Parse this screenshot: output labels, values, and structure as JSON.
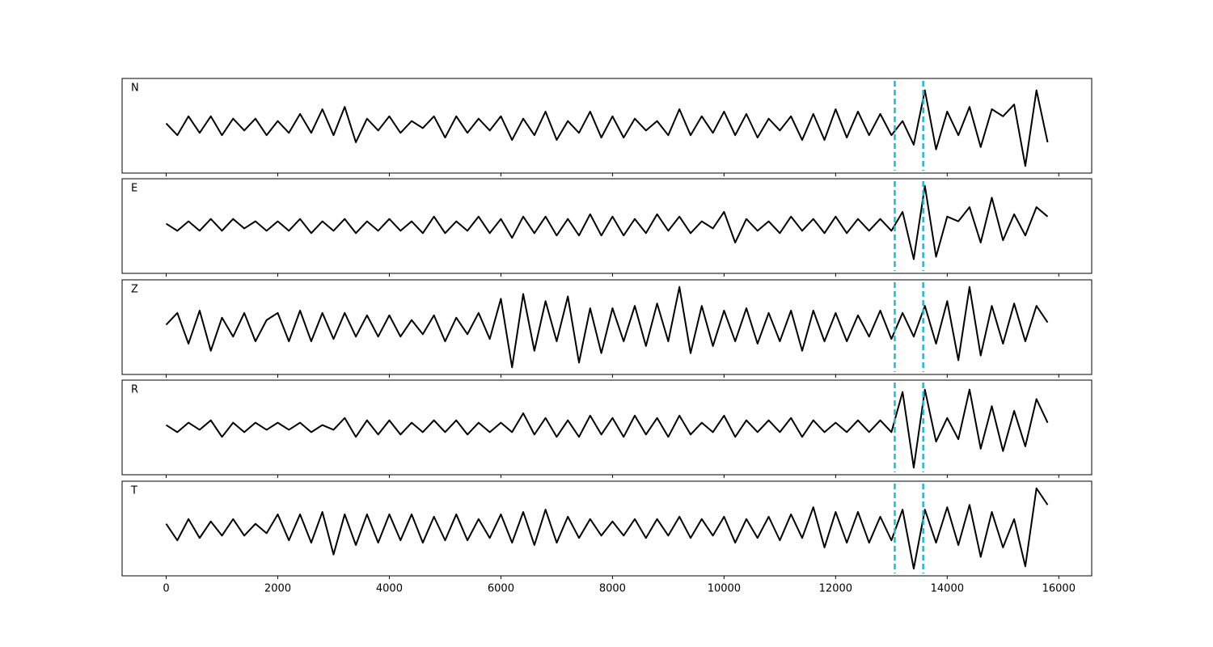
{
  "chart_data": {
    "type": "line",
    "x": [
      0,
      200,
      400,
      600,
      800,
      1000,
      1200,
      1400,
      1600,
      1800,
      2000,
      2200,
      2400,
      2600,
      2800,
      3000,
      3200,
      3400,
      3600,
      3800,
      4000,
      4200,
      4400,
      4600,
      4800,
      5000,
      5200,
      5400,
      5600,
      5800,
      6000,
      6200,
      6400,
      6600,
      6800,
      7000,
      7200,
      7400,
      7600,
      7800,
      8000,
      8200,
      8400,
      8600,
      8800,
      9000,
      9200,
      9400,
      9600,
      9800,
      10000,
      10200,
      10400,
      10600,
      10800,
      11000,
      11200,
      11400,
      11600,
      11800,
      12000,
      12200,
      12400,
      12600,
      12800,
      13000,
      13200,
      13400,
      13600,
      13800,
      14000,
      14200,
      14400,
      14600,
      14800,
      15000,
      15200,
      15400,
      15600,
      15800
    ],
    "xlim": [
      -790,
      16590
    ],
    "xticks": [
      0,
      2000,
      4000,
      6000,
      8000,
      10000,
      12000,
      14000,
      16000
    ],
    "ylim": [
      -1,
      1
    ],
    "vlines": [
      13060,
      13570
    ],
    "vline_color": "#17becf",
    "series": [
      {
        "name": "N",
        "color": "#000000",
        "values": [
          0.05,
          -0.2,
          0.2,
          -0.15,
          0.2,
          -0.2,
          0.15,
          -0.1,
          0.15,
          -0.2,
          0.1,
          -0.15,
          0.25,
          -0.15,
          0.35,
          -0.2,
          0.4,
          -0.35,
          0.15,
          -0.1,
          0.2,
          -0.15,
          0.1,
          -0.05,
          0.2,
          -0.25,
          0.2,
          -0.15,
          0.15,
          -0.1,
          0.2,
          -0.3,
          0.15,
          -0.2,
          0.3,
          -0.3,
          0.1,
          -0.15,
          0.3,
          -0.25,
          0.2,
          -0.25,
          0.15,
          -0.1,
          0.1,
          -0.2,
          0.35,
          -0.2,
          0.2,
          -0.15,
          0.3,
          -0.2,
          0.25,
          -0.25,
          0.15,
          -0.1,
          0.2,
          -0.3,
          0.25,
          -0.3,
          0.35,
          -0.25,
          0.3,
          -0.2,
          0.25,
          -0.2,
          0.1,
          -0.4,
          0.75,
          -0.5,
          0.3,
          -0.2,
          0.4,
          -0.45,
          0.35,
          0.2,
          0.45,
          -0.85,
          0.75,
          -0.35
        ]
      },
      {
        "name": "E",
        "color": "#000000",
        "values": [
          0.05,
          -0.1,
          0.1,
          -0.1,
          0.15,
          -0.1,
          0.15,
          -0.05,
          0.1,
          -0.1,
          0.1,
          -0.1,
          0.15,
          -0.15,
          0.1,
          -0.1,
          0.15,
          -0.15,
          0.1,
          -0.1,
          0.15,
          -0.1,
          0.1,
          -0.15,
          0.2,
          -0.15,
          0.1,
          -0.1,
          0.2,
          -0.15,
          0.15,
          -0.25,
          0.2,
          -0.15,
          0.2,
          -0.2,
          0.15,
          -0.2,
          0.25,
          -0.2,
          0.2,
          -0.2,
          0.15,
          -0.15,
          0.25,
          -0.1,
          0.2,
          -0.15,
          0.1,
          -0.05,
          0.3,
          -0.35,
          0.15,
          -0.1,
          0.1,
          -0.15,
          0.2,
          -0.1,
          0.15,
          -0.15,
          0.2,
          -0.15,
          0.15,
          -0.1,
          0.15,
          -0.1,
          0.3,
          -0.7,
          0.85,
          -0.65,
          0.2,
          0.1,
          0.4,
          -0.35,
          0.6,
          -0.3,
          0.25,
          -0.2,
          0.4,
          0.2
        ]
      },
      {
        "name": "Z",
        "color": "#000000",
        "values": [
          0.05,
          0.3,
          -0.35,
          0.35,
          -0.5,
          0.2,
          -0.2,
          0.3,
          -0.3,
          0.15,
          0.3,
          -0.3,
          0.35,
          -0.3,
          0.3,
          -0.25,
          0.3,
          -0.2,
          0.25,
          -0.2,
          0.25,
          -0.2,
          0.15,
          -0.15,
          0.25,
          -0.3,
          0.2,
          -0.15,
          0.3,
          -0.25,
          0.6,
          -0.85,
          0.7,
          -0.5,
          0.55,
          -0.3,
          0.65,
          -0.75,
          0.4,
          -0.55,
          0.4,
          -0.3,
          0.45,
          -0.4,
          0.5,
          -0.3,
          0.85,
          -0.55,
          0.45,
          -0.4,
          0.35,
          -0.3,
          0.4,
          -0.35,
          0.3,
          -0.3,
          0.35,
          -0.5,
          0.35,
          -0.3,
          0.3,
          -0.3,
          0.25,
          -0.2,
          0.35,
          -0.25,
          0.3,
          -0.2,
          0.45,
          -0.35,
          0.55,
          -0.7,
          0.85,
          -0.6,
          0.45,
          -0.35,
          0.5,
          -0.3,
          0.45,
          0.1
        ]
      },
      {
        "name": "R",
        "color": "#000000",
        "values": [
          0.05,
          -0.1,
          0.1,
          -0.05,
          0.15,
          -0.2,
          0.1,
          -0.1,
          0.1,
          -0.05,
          0.1,
          -0.05,
          0.1,
          -0.1,
          0.05,
          -0.05,
          0.2,
          -0.2,
          0.15,
          -0.15,
          0.15,
          -0.15,
          0.1,
          -0.1,
          0.15,
          -0.1,
          0.15,
          -0.15,
          0.1,
          -0.1,
          0.1,
          -0.1,
          0.3,
          -0.15,
          0.2,
          -0.2,
          0.15,
          -0.2,
          0.25,
          -0.15,
          0.2,
          -0.2,
          0.25,
          -0.15,
          0.2,
          -0.2,
          0.25,
          -0.15,
          0.1,
          -0.1,
          0.25,
          -0.2,
          0.15,
          -0.1,
          0.15,
          -0.1,
          0.2,
          -0.2,
          0.15,
          -0.1,
          0.1,
          -0.1,
          0.15,
          -0.1,
          0.15,
          -0.1,
          0.75,
          -0.85,
          0.8,
          -0.3,
          0.2,
          -0.25,
          0.8,
          -0.45,
          0.45,
          -0.5,
          0.35,
          -0.4,
          0.6,
          0.1
        ]
      },
      {
        "name": "T",
        "color": "#000000",
        "values": [
          0.1,
          -0.25,
          0.2,
          -0.2,
          0.15,
          -0.15,
          0.2,
          -0.15,
          0.1,
          -0.1,
          0.3,
          -0.25,
          0.3,
          -0.3,
          0.35,
          -0.55,
          0.3,
          -0.35,
          0.3,
          -0.3,
          0.3,
          -0.25,
          0.3,
          -0.3,
          0.25,
          -0.25,
          0.3,
          -0.25,
          0.2,
          -0.2,
          0.3,
          -0.3,
          0.35,
          -0.35,
          0.4,
          -0.3,
          0.25,
          -0.2,
          0.2,
          -0.15,
          0.15,
          -0.15,
          0.2,
          -0.2,
          0.2,
          -0.15,
          0.25,
          -0.2,
          0.2,
          -0.15,
          0.25,
          -0.3,
          0.2,
          -0.2,
          0.25,
          -0.25,
          0.3,
          -0.2,
          0.45,
          -0.4,
          0.35,
          -0.3,
          0.35,
          -0.3,
          0.25,
          -0.25,
          0.4,
          -0.85,
          0.4,
          -0.3,
          0.45,
          -0.35,
          0.5,
          -0.6,
          0.35,
          -0.4,
          0.2,
          -0.8,
          0.85,
          0.5
        ]
      }
    ]
  }
}
